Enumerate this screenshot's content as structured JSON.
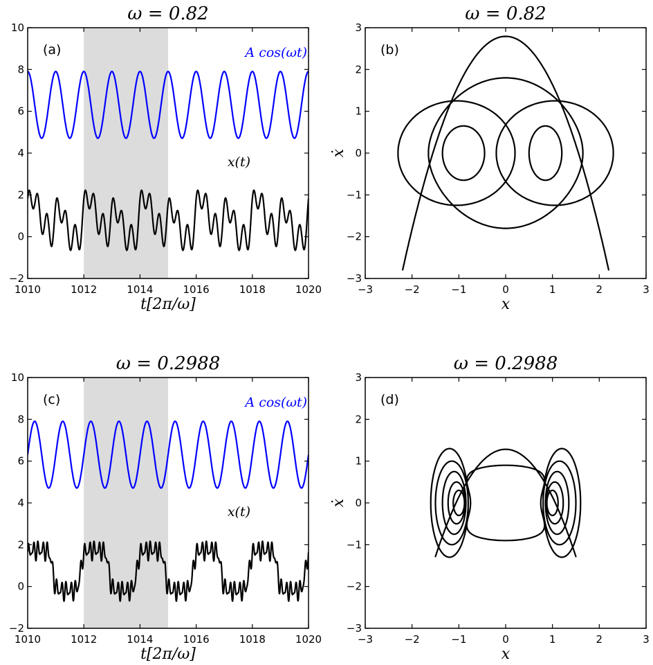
{
  "colors": {
    "drive": "#0000ff",
    "response": "#000000",
    "shade": "#dcdcdc",
    "axes": "#000000"
  },
  "chart_data": [
    {
      "type": "line",
      "panel_label": "(a)",
      "title": "ω = 0.82",
      "xlabel": "t[2π/ω]",
      "ylabel": "",
      "xlim": [
        1010,
        1020
      ],
      "ylim": [
        -3,
        10
      ],
      "xticks": [
        "1010",
        "1012",
        "1014",
        "1016",
        "1018",
        "1020"
      ],
      "yticks": [
        "−2",
        "0",
        "2",
        "4",
        "6",
        "8",
        "10"
      ],
      "shaded_x_range": [
        1012,
        1015
      ],
      "series": [
        {
          "name": "A cos(ωt)",
          "color": "#0000ff",
          "model": "drive",
          "offset": 6.0,
          "amplitude": 1.73,
          "periods_per_unit": 1,
          "phase_deg": 90
        },
        {
          "name": "x(t)",
          "color": "#000000",
          "model": "response_a",
          "extrema_range": [
            -2.2,
            2.2
          ]
        }
      ],
      "grid": false
    },
    {
      "type": "line",
      "panel_label": "(b)",
      "title": "ω = 0.82",
      "xlabel": "x",
      "ylabel": "ẋ",
      "xlim": [
        -3,
        3
      ],
      "ylim": [
        -3,
        3
      ],
      "xticks": [
        "−3",
        "−2",
        "−1",
        "0",
        "1",
        "2",
        "3"
      ],
      "yticks": [
        "−3",
        "−2",
        "−1",
        "0",
        "1",
        "2",
        "3"
      ],
      "series": [
        {
          "color": "#000000",
          "model": "phase_b",
          "x_range": [
            -2.2,
            2.2
          ],
          "y_range": [
            -2.85,
            2.85
          ]
        }
      ],
      "grid": false
    },
    {
      "type": "line",
      "panel_label": "(c)",
      "title": "ω = 0.2988",
      "xlabel": "t[2π/ω]",
      "ylabel": "",
      "xlim": [
        1010,
        1020
      ],
      "ylim": [
        -3,
        10
      ],
      "xticks": [
        "1010",
        "1012",
        "1014",
        "1016",
        "1018",
        "1020"
      ],
      "yticks": [
        "−2",
        "0",
        "2",
        "4",
        "6",
        "8",
        "10"
      ],
      "shaded_x_range": [
        1012,
        1015
      ],
      "series": [
        {
          "name": "A cos(ωt)",
          "color": "#0000ff",
          "model": "drive",
          "offset": 6.0,
          "amplitude": 1.73,
          "periods_per_unit": 1,
          "phase_deg": 0
        },
        {
          "name": "x(t)",
          "color": "#000000",
          "model": "response_c",
          "extrema_range": [
            -1.7,
            1.7
          ]
        }
      ],
      "grid": false
    },
    {
      "type": "line",
      "panel_label": "(d)",
      "title": "ω = 0.2988",
      "xlabel": "x",
      "ylabel": "ẋ",
      "xlim": [
        -3,
        3
      ],
      "ylim": [
        -3,
        3
      ],
      "xticks": [
        "−3",
        "−2",
        "−1",
        "0",
        "1",
        "2",
        "3"
      ],
      "yticks": [
        "−3",
        "−2",
        "−1",
        "0",
        "1",
        "2",
        "3"
      ],
      "series": [
        {
          "color": "#000000",
          "model": "phase_d",
          "x_range": [
            -1.55,
            1.55
          ],
          "y_range": [
            -1.4,
            1.4
          ]
        }
      ],
      "grid": false
    }
  ]
}
